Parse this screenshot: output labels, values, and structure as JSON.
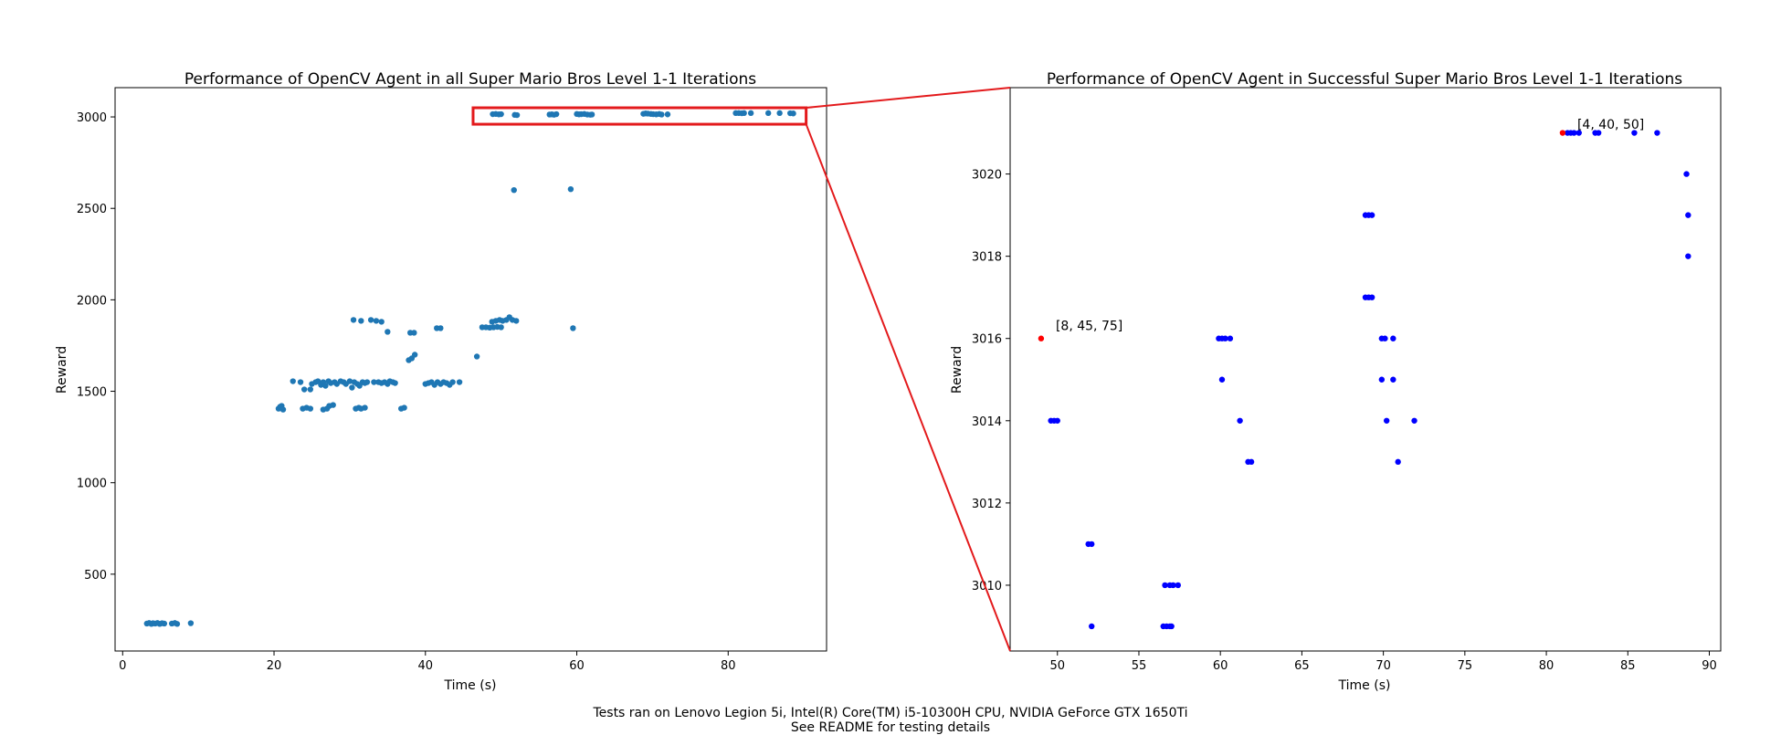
{
  "colors": {
    "overview_points": "#1f77b4",
    "zoom_points": "#0000ff",
    "highlight_points": "#ff0000",
    "zoom_box": "#e31a1c",
    "axes": "#000000"
  },
  "footer": {
    "line1": "Tests ran on Lenovo Legion 5i, Intel(R) Core(TM) i5-10300H CPU, NVIDIA GeForce GTX 1650Ti",
    "line2": "See README for testing details"
  },
  "chart_data": [
    {
      "id": "overview",
      "type": "scatter",
      "title": "Performance of OpenCV Agent in all Super Mario Bros Level 1-1 Iterations",
      "xlabel": "Time (s)",
      "ylabel": "Reward",
      "xlim": [
        -1,
        93
      ],
      "ylim": [
        80,
        3160
      ],
      "xticks": [
        0,
        20,
        40,
        60,
        80
      ],
      "yticks": [
        500,
        1000,
        1500,
        2000,
        2500,
        3000
      ],
      "zoom_box": {
        "x": [
          46.3,
          90.3
        ],
        "y": [
          2960,
          3050
        ]
      },
      "series": [
        {
          "points": [
            [
              3.2,
              230
            ],
            [
              3.5,
              233
            ],
            [
              3.8,
              228
            ],
            [
              4.0,
              232
            ],
            [
              4.3,
              230
            ],
            [
              4.6,
              233
            ],
            [
              4.9,
              228
            ],
            [
              5.2,
              232
            ],
            [
              5.5,
              230
            ],
            [
              6.5,
              230
            ],
            [
              6.9,
              233
            ],
            [
              7.2,
              228
            ],
            [
              9.0,
              232
            ],
            [
              20.6,
              1405
            ],
            [
              20.8,
              1415
            ],
            [
              21.0,
              1420
            ],
            [
              21.2,
              1400
            ],
            [
              23.8,
              1405
            ],
            [
              24.3,
              1410
            ],
            [
              24.8,
              1405
            ],
            [
              26.5,
              1400
            ],
            [
              27.0,
              1405
            ],
            [
              27.3,
              1420
            ],
            [
              27.8,
              1425
            ],
            [
              30.8,
              1405
            ],
            [
              31.2,
              1410
            ],
            [
              31.5,
              1405
            ],
            [
              32.0,
              1410
            ],
            [
              36.8,
              1405
            ],
            [
              37.2,
              1410
            ],
            [
              22.5,
              1555
            ],
            [
              23.5,
              1550
            ],
            [
              24.0,
              1510
            ],
            [
              24.8,
              1510
            ],
            [
              25.0,
              1540
            ],
            [
              25.5,
              1550
            ],
            [
              25.8,
              1555
            ],
            [
              26.2,
              1535
            ],
            [
              26.5,
              1550
            ],
            [
              26.8,
              1530
            ],
            [
              27.2,
              1555
            ],
            [
              27.5,
              1545
            ],
            [
              28.0,
              1550
            ],
            [
              28.3,
              1540
            ],
            [
              28.8,
              1555
            ],
            [
              29.2,
              1550
            ],
            [
              29.5,
              1540
            ],
            [
              30.0,
              1555
            ],
            [
              30.3,
              1520
            ],
            [
              30.6,
              1550
            ],
            [
              31.0,
              1540
            ],
            [
              31.3,
              1530
            ],
            [
              31.7,
              1550
            ],
            [
              32.0,
              1545
            ],
            [
              32.3,
              1550
            ],
            [
              33.2,
              1550
            ],
            [
              33.8,
              1550
            ],
            [
              34.2,
              1545
            ],
            [
              34.6,
              1550
            ],
            [
              35.0,
              1540
            ],
            [
              35.3,
              1555
            ],
            [
              35.7,
              1550
            ],
            [
              36.0,
              1545
            ],
            [
              40.0,
              1540
            ],
            [
              40.4,
              1545
            ],
            [
              40.8,
              1550
            ],
            [
              41.2,
              1535
            ],
            [
              41.6,
              1550
            ],
            [
              42.0,
              1540
            ],
            [
              42.4,
              1550
            ],
            [
              42.8,
              1545
            ],
            [
              43.2,
              1535
            ],
            [
              43.6,
              1550
            ],
            [
              44.5,
              1550
            ],
            [
              37.8,
              1670
            ],
            [
              38.2,
              1680
            ],
            [
              38.6,
              1700
            ],
            [
              46.8,
              1690
            ],
            [
              38.0,
              1820
            ],
            [
              38.5,
              1820
            ],
            [
              41.5,
              1845
            ],
            [
              42.0,
              1845
            ],
            [
              47.5,
              1850
            ],
            [
              48.0,
              1850
            ],
            [
              48.5,
              1848
            ],
            [
              49.0,
              1850
            ],
            [
              49.5,
              1852
            ],
            [
              50.0,
              1850
            ],
            [
              59.5,
              1845
            ],
            [
              30.5,
              1890
            ],
            [
              31.5,
              1885
            ],
            [
              32.8,
              1890
            ],
            [
              33.5,
              1885
            ],
            [
              34.2,
              1880
            ],
            [
              35.0,
              1825
            ],
            [
              48.8,
              1880
            ],
            [
              49.3,
              1885
            ],
            [
              49.8,
              1890
            ],
            [
              50.2,
              1885
            ],
            [
              50.7,
              1890
            ],
            [
              51.1,
              1905
            ],
            [
              51.5,
              1890
            ],
            [
              52.0,
              1885
            ],
            [
              51.7,
              2600
            ],
            [
              59.2,
              2605
            ],
            [
              48.9,
              3015
            ],
            [
              49.3,
              3016
            ],
            [
              49.7,
              3014
            ],
            [
              50.0,
              3015
            ],
            [
              51.8,
              3011
            ],
            [
              52.1,
              3010
            ],
            [
              56.4,
              3013
            ],
            [
              56.7,
              3014
            ],
            [
              57.0,
              3012
            ],
            [
              57.3,
              3015
            ],
            [
              60.0,
              3016
            ],
            [
              60.3,
              3014
            ],
            [
              60.6,
              3015
            ],
            [
              61.0,
              3016
            ],
            [
              61.4,
              3013
            ],
            [
              61.8,
              3012
            ],
            [
              62.0,
              3013
            ],
            [
              68.8,
              3017
            ],
            [
              69.1,
              3019
            ],
            [
              69.4,
              3018
            ],
            [
              69.8,
              3016
            ],
            [
              70.1,
              3015
            ],
            [
              70.5,
              3014
            ],
            [
              70.9,
              3016
            ],
            [
              71.2,
              3013
            ],
            [
              72.0,
              3014
            ],
            [
              81.0,
              3021
            ],
            [
              81.4,
              3021
            ],
            [
              81.8,
              3020
            ],
            [
              82.1,
              3021
            ],
            [
              83.0,
              3021
            ],
            [
              85.3,
              3021
            ],
            [
              86.8,
              3021
            ],
            [
              88.2,
              3020
            ],
            [
              88.6,
              3019
            ]
          ]
        }
      ]
    },
    {
      "id": "zoom",
      "type": "scatter",
      "title": "Performance of OpenCV Agent in Successful Super Mario Bros Level 1-1 Iterations",
      "xlabel": "Time (s)",
      "ylabel": "Reward",
      "xlim": [
        47.1,
        90.7
      ],
      "ylim": [
        3008.4,
        3022.1
      ],
      "xticks": [
        50,
        55,
        60,
        65,
        70,
        75,
        80,
        85,
        90
      ],
      "yticks": [
        3010,
        3012,
        3014,
        3016,
        3018,
        3020
      ],
      "annotations": [
        {
          "text": "[8, 45, 75]",
          "x": 49.9,
          "y": 3016.2
        },
        {
          "text": "[4, 40, 50]",
          "x": 81.9,
          "y": 3021.1
        }
      ],
      "series": [
        {
          "role": "regular",
          "points": [
            [
              49.6,
              3014
            ],
            [
              49.8,
              3014
            ],
            [
              50.0,
              3014
            ],
            [
              51.9,
              3011
            ],
            [
              52.1,
              3011
            ],
            [
              52.1,
              3009
            ],
            [
              56.5,
              3009
            ],
            [
              56.7,
              3009
            ],
            [
              56.9,
              3009
            ],
            [
              57.0,
              3009
            ],
            [
              56.6,
              3010
            ],
            [
              56.9,
              3010
            ],
            [
              57.1,
              3010
            ],
            [
              57.4,
              3010
            ],
            [
              59.9,
              3016
            ],
            [
              60.1,
              3016
            ],
            [
              60.3,
              3016
            ],
            [
              60.6,
              3016
            ],
            [
              60.1,
              3015
            ],
            [
              61.2,
              3014
            ],
            [
              61.7,
              3013
            ],
            [
              61.9,
              3013
            ],
            [
              68.9,
              3019
            ],
            [
              69.1,
              3019
            ],
            [
              69.3,
              3019
            ],
            [
              68.9,
              3017
            ],
            [
              69.1,
              3017
            ],
            [
              69.3,
              3017
            ],
            [
              69.9,
              3016
            ],
            [
              70.1,
              3016
            ],
            [
              70.6,
              3016
            ],
            [
              69.9,
              3015
            ],
            [
              70.6,
              3015
            ],
            [
              70.2,
              3014
            ],
            [
              71.9,
              3014
            ],
            [
              70.9,
              3013
            ],
            [
              81.3,
              3021
            ],
            [
              81.5,
              3021
            ],
            [
              81.7,
              3021
            ],
            [
              82.0,
              3021
            ],
            [
              83.0,
              3021
            ],
            [
              83.2,
              3021
            ],
            [
              85.4,
              3021
            ],
            [
              86.8,
              3021
            ],
            [
              88.6,
              3020
            ],
            [
              88.7,
              3019
            ],
            [
              88.7,
              3018
            ]
          ]
        },
        {
          "role": "highlight",
          "points": [
            [
              49.0,
              3016
            ],
            [
              81.0,
              3021
            ]
          ]
        }
      ]
    }
  ]
}
